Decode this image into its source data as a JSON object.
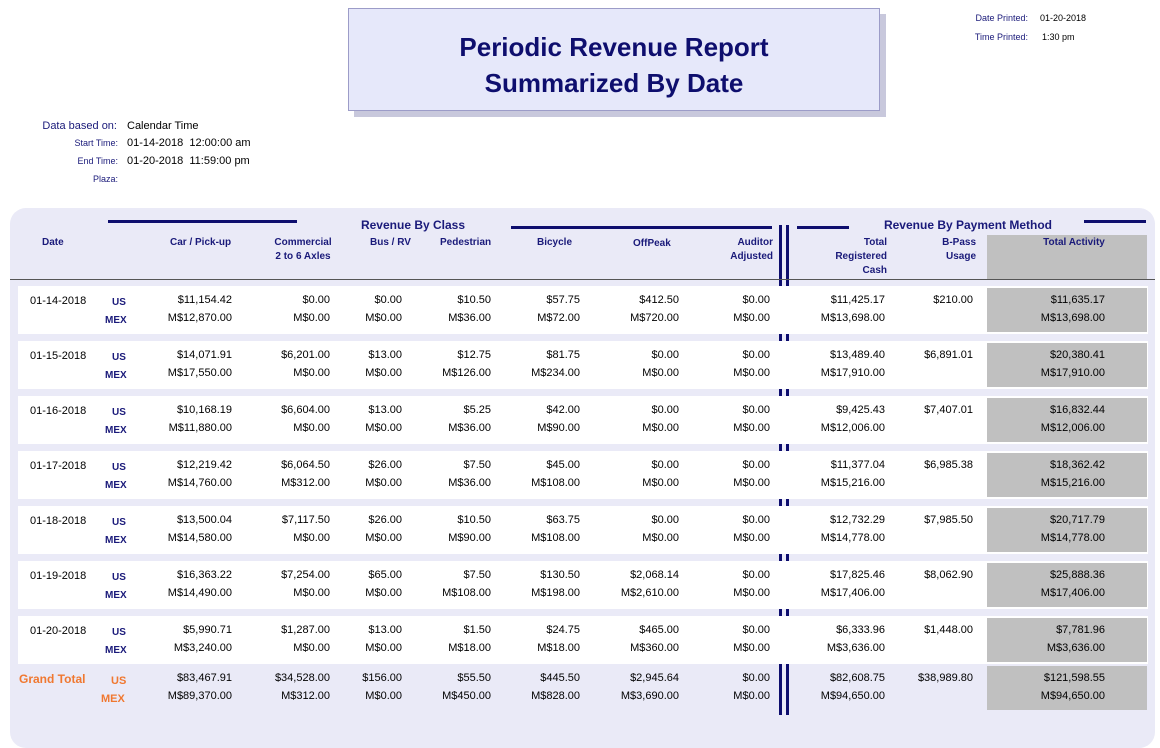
{
  "title": {
    "line1": "Periodic Revenue Report",
    "line2": "Summarized By Date"
  },
  "printed": {
    "date_label": "Date Printed:",
    "date": "01-20-2018",
    "time_label": "Time Printed:",
    "time": "1:30 pm"
  },
  "params": {
    "basis_label": "Data based on:",
    "basis": "Calendar Time",
    "start_label": "Start Time:",
    "start": "01-14-2018  12:00:00 am",
    "end_label": "End Time:",
    "end": "01-20-2018  11:59:00 pm",
    "plaza_label": "Plaza:"
  },
  "groups": {
    "by_class": "Revenue By Class",
    "by_payment": "Revenue By Payment Method"
  },
  "columns": {
    "date": "Date",
    "car": "Car / Pick-up",
    "commercial": [
      "Commercial",
      "2 to 6 Axles"
    ],
    "bus": "Bus / RV",
    "ped": "Pedestrian",
    "bike": "Bicycle",
    "offpeak": "OffPeak",
    "auditor": [
      "Auditor",
      "Adjusted"
    ],
    "cash": [
      "Total",
      "Registered",
      "Cash"
    ],
    "bpass": [
      "B-Pass",
      "Usage"
    ],
    "total": "Total Activity"
  },
  "currency_labels": {
    "us": "US",
    "mex": "MEX"
  },
  "rows": [
    {
      "date": "01-14-2018",
      "us": [
        "$11,154.42",
        "$0.00",
        "$0.00",
        "$10.50",
        "$57.75",
        "$412.50",
        "$0.00",
        "$11,425.17",
        "$210.00",
        "$11,635.17"
      ],
      "mex": [
        "M$12,870.00",
        "M$0.00",
        "M$0.00",
        "M$36.00",
        "M$72.00",
        "M$720.00",
        "M$0.00",
        "M$13,698.00",
        "",
        "M$13,698.00"
      ]
    },
    {
      "date": "01-15-2018",
      "us": [
        "$14,071.91",
        "$6,201.00",
        "$13.00",
        "$12.75",
        "$81.75",
        "$0.00",
        "$0.00",
        "$13,489.40",
        "$6,891.01",
        "$20,380.41"
      ],
      "mex": [
        "M$17,550.00",
        "M$0.00",
        "M$0.00",
        "M$126.00",
        "M$234.00",
        "M$0.00",
        "M$0.00",
        "M$17,910.00",
        "",
        "M$17,910.00"
      ]
    },
    {
      "date": "01-16-2018",
      "us": [
        "$10,168.19",
        "$6,604.00",
        "$13.00",
        "$5.25",
        "$42.00",
        "$0.00",
        "$0.00",
        "$9,425.43",
        "$7,407.01",
        "$16,832.44"
      ],
      "mex": [
        "M$11,880.00",
        "M$0.00",
        "M$0.00",
        "M$36.00",
        "M$90.00",
        "M$0.00",
        "M$0.00",
        "M$12,006.00",
        "",
        "M$12,006.00"
      ]
    },
    {
      "date": "01-17-2018",
      "us": [
        "$12,219.42",
        "$6,064.50",
        "$26.00",
        "$7.50",
        "$45.00",
        "$0.00",
        "$0.00",
        "$11,377.04",
        "$6,985.38",
        "$18,362.42"
      ],
      "mex": [
        "M$14,760.00",
        "M$312.00",
        "M$0.00",
        "M$36.00",
        "M$108.00",
        "M$0.00",
        "M$0.00",
        "M$15,216.00",
        "",
        "M$15,216.00"
      ]
    },
    {
      "date": "01-18-2018",
      "us": [
        "$13,500.04",
        "$7,117.50",
        "$26.00",
        "$10.50",
        "$63.75",
        "$0.00",
        "$0.00",
        "$12,732.29",
        "$7,985.50",
        "$20,717.79"
      ],
      "mex": [
        "M$14,580.00",
        "M$0.00",
        "M$0.00",
        "M$90.00",
        "M$108.00",
        "M$0.00",
        "M$0.00",
        "M$14,778.00",
        "",
        "M$14,778.00"
      ]
    },
    {
      "date": "01-19-2018",
      "us": [
        "$16,363.22",
        "$7,254.00",
        "$65.00",
        "$7.50",
        "$130.50",
        "$2,068.14",
        "$0.00",
        "$17,825.46",
        "$8,062.90",
        "$25,888.36"
      ],
      "mex": [
        "M$14,490.00",
        "M$0.00",
        "M$0.00",
        "M$108.00",
        "M$198.00",
        "M$2,610.00",
        "M$0.00",
        "M$17,406.00",
        "",
        "M$17,406.00"
      ]
    },
    {
      "date": "01-20-2018",
      "us": [
        "$5,990.71",
        "$1,287.00",
        "$13.00",
        "$1.50",
        "$24.75",
        "$465.00",
        "$0.00",
        "$6,333.96",
        "$1,448.00",
        "$7,781.96"
      ],
      "mex": [
        "M$3,240.00",
        "M$0.00",
        "M$0.00",
        "M$18.00",
        "M$18.00",
        "M$360.00",
        "M$0.00",
        "M$3,636.00",
        "",
        "M$3,636.00"
      ]
    }
  ],
  "grand_total": {
    "label": "Grand Total",
    "us": [
      "$83,467.91",
      "$34,528.00",
      "$156.00",
      "$55.50",
      "$445.50",
      "$2,945.64",
      "$0.00",
      "$82,608.75",
      "$38,989.80",
      "$121,598.55"
    ],
    "mex": [
      "M$89,370.00",
      "M$312.00",
      "M$0.00",
      "M$450.00",
      "M$828.00",
      "M$3,690.00",
      "M$0.00",
      "M$94,650.00",
      "",
      "M$94,650.00"
    ]
  },
  "colors": {
    "navy": "#0e0e6e",
    "panel": "#eaeaf7",
    "title_box": "#e6e8fa",
    "grey": "#c0c0c0",
    "grand_total": "#f07830"
  }
}
